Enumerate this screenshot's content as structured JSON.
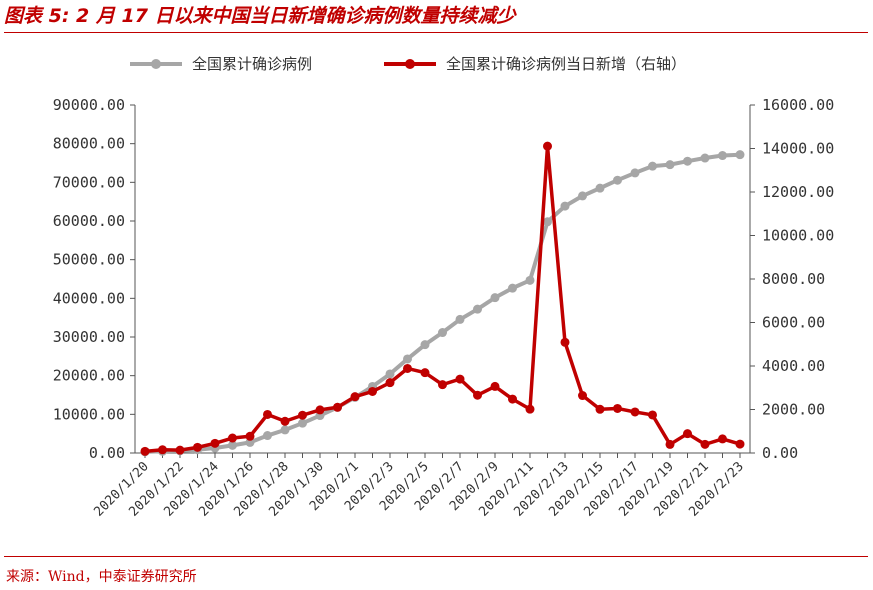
{
  "title": "图表 5:  2 月 17 日以来中国当日新增确诊病例数量持续减少",
  "source": "来源：Wind，中泰证券研究所",
  "colors": {
    "accent": "#c00000",
    "cumulative": "#a6a6a6",
    "daily": "#c00000"
  },
  "chart_data": {
    "type": "line",
    "x": [
      "2020/1/20",
      "2020/1/21",
      "2020/1/22",
      "2020/1/23",
      "2020/1/24",
      "2020/1/25",
      "2020/1/26",
      "2020/1/27",
      "2020/1/28",
      "2020/1/29",
      "2020/1/30",
      "2020/1/31",
      "2020/2/1",
      "2020/2/2",
      "2020/2/3",
      "2020/2/4",
      "2020/2/5",
      "2020/2/6",
      "2020/2/7",
      "2020/2/8",
      "2020/2/9",
      "2020/2/10",
      "2020/2/11",
      "2020/2/12",
      "2020/2/13",
      "2020/2/14",
      "2020/2/15",
      "2020/2/16",
      "2020/2/17",
      "2020/2/18",
      "2020/2/19",
      "2020/2/20",
      "2020/2/21",
      "2020/2/22",
      "2020/2/23"
    ],
    "x_tick_labels": [
      "2020/1/20",
      "2020/1/22",
      "2020/1/24",
      "2020/1/26",
      "2020/1/28",
      "2020/1/30",
      "2020/2/1",
      "2020/2/3",
      "2020/2/5",
      "2020/2/7",
      "2020/2/9",
      "2020/2/11",
      "2020/2/13",
      "2020/2/15",
      "2020/2/17",
      "2020/2/19",
      "2020/2/21",
      "2020/2/23"
    ],
    "series": [
      {
        "name": "全国累计确诊病例",
        "axis": "left",
        "values": [
          291,
          440,
          571,
          830,
          1287,
          1975,
          2744,
          4515,
          5974,
          7711,
          9692,
          11791,
          14380,
          17205,
          20438,
          24324,
          28018,
          31161,
          34546,
          37198,
          40171,
          42638,
          44653,
          59804,
          63851,
          66492,
          68500,
          70548,
          72436,
          74185,
          74576,
          75465,
          76288,
          76936,
          77150
        ]
      },
      {
        "name": "全国累计确诊病例当日新增（右轴）",
        "axis": "right",
        "values": [
          77,
          149,
          131,
          259,
          444,
          688,
          769,
          1771,
          1459,
          1737,
          1982,
          2102,
          2590,
          2829,
          3235,
          3887,
          3694,
          3143,
          3399,
          2656,
          3062,
          2478,
          2015,
          14108,
          5090,
          2641,
          2009,
          2048,
          1886,
          1749,
          394,
          889,
          397,
          648,
          409
        ]
      }
    ],
    "yleft": {
      "min": 0,
      "max": 90000,
      "ticks": [
        "0.00",
        "10000.00",
        "20000.00",
        "30000.00",
        "40000.00",
        "50000.00",
        "60000.00",
        "70000.00",
        "80000.00",
        "90000.00"
      ]
    },
    "yright": {
      "min": 0,
      "max": 16000,
      "ticks": [
        "0.00",
        "2000.00",
        "4000.00",
        "6000.00",
        "8000.00",
        "10000.00",
        "12000.00",
        "14000.00",
        "16000.00"
      ]
    },
    "legend_position": "top",
    "grid": false
  }
}
